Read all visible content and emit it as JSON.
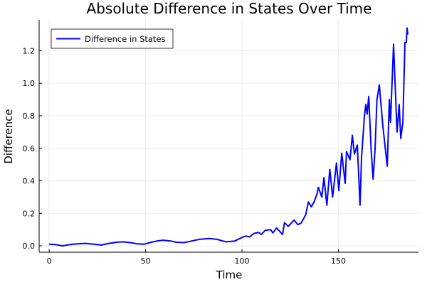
{
  "chart_data": {
    "type": "line",
    "title": "Absolute Difference in States Over Time",
    "xlabel": "Time",
    "ylabel": "Difference",
    "xlim": [
      -5.2,
      191.5
    ],
    "ylim": [
      -0.039,
      1.39
    ],
    "xticks": [
      0,
      50,
      100,
      150
    ],
    "xtick_labels": [
      "0",
      "50",
      "100",
      "150"
    ],
    "yticks": [
      0.0,
      0.2,
      0.4,
      0.6,
      0.8,
      1.0,
      1.2
    ],
    "ytick_labels": [
      "0.0",
      "0.2",
      "0.4",
      "0.6",
      "0.8",
      "1.0",
      "1.2"
    ],
    "grid": true,
    "legend_position": "top-left",
    "series": [
      {
        "name": "Difference in States",
        "color": "#0000ff",
        "x": [
          0,
          3,
          7,
          11,
          15,
          19,
          23,
          27,
          31,
          35,
          38,
          42,
          46,
          49,
          53,
          56,
          59,
          63,
          66,
          70,
          74,
          78,
          83,
          87,
          90,
          92,
          96.3,
          100,
          102,
          104,
          106,
          108.5,
          110,
          112,
          114.8,
          116,
          118,
          121,
          122,
          124,
          127,
          129,
          130.6,
          133,
          134.4,
          136,
          137.6,
          138.9,
          139.6,
          141.4,
          142.5,
          144,
          145.5,
          147,
          149,
          150.2,
          151.7,
          153.5,
          154.2,
          156,
          157.2,
          158.3,
          159.8,
          161.2,
          162,
          163.5,
          164.2,
          164.9,
          165.7,
          167,
          168,
          169,
          170,
          171.2,
          173,
          175.3,
          176.4,
          177,
          178.6,
          180.4,
          181.5,
          182.3,
          183.4,
          184.5,
          185.2,
          185.6,
          186
        ],
        "y": [
          0.01,
          0.008,
          0.0,
          0.008,
          0.013,
          0.015,
          0.01,
          0.005,
          0.015,
          0.022,
          0.025,
          0.02,
          0.012,
          0.01,
          0.022,
          0.03,
          0.035,
          0.03,
          0.022,
          0.02,
          0.03,
          0.04,
          0.045,
          0.04,
          0.03,
          0.025,
          0.03,
          0.052,
          0.06,
          0.055,
          0.075,
          0.083,
          0.07,
          0.095,
          0.1,
          0.08,
          0.11,
          0.07,
          0.143,
          0.12,
          0.158,
          0.13,
          0.14,
          0.19,
          0.27,
          0.24,
          0.275,
          0.32,
          0.36,
          0.3,
          0.42,
          0.25,
          0.47,
          0.3,
          0.51,
          0.34,
          0.57,
          0.385,
          0.58,
          0.53,
          0.68,
          0.565,
          0.62,
          0.25,
          0.55,
          0.8,
          0.87,
          0.81,
          0.92,
          0.585,
          0.41,
          0.595,
          0.9,
          0.99,
          0.74,
          0.49,
          0.9,
          0.76,
          1.24,
          0.7,
          0.87,
          0.66,
          0.76,
          1.25,
          1.25,
          1.34,
          1.3
        ]
      }
    ]
  }
}
